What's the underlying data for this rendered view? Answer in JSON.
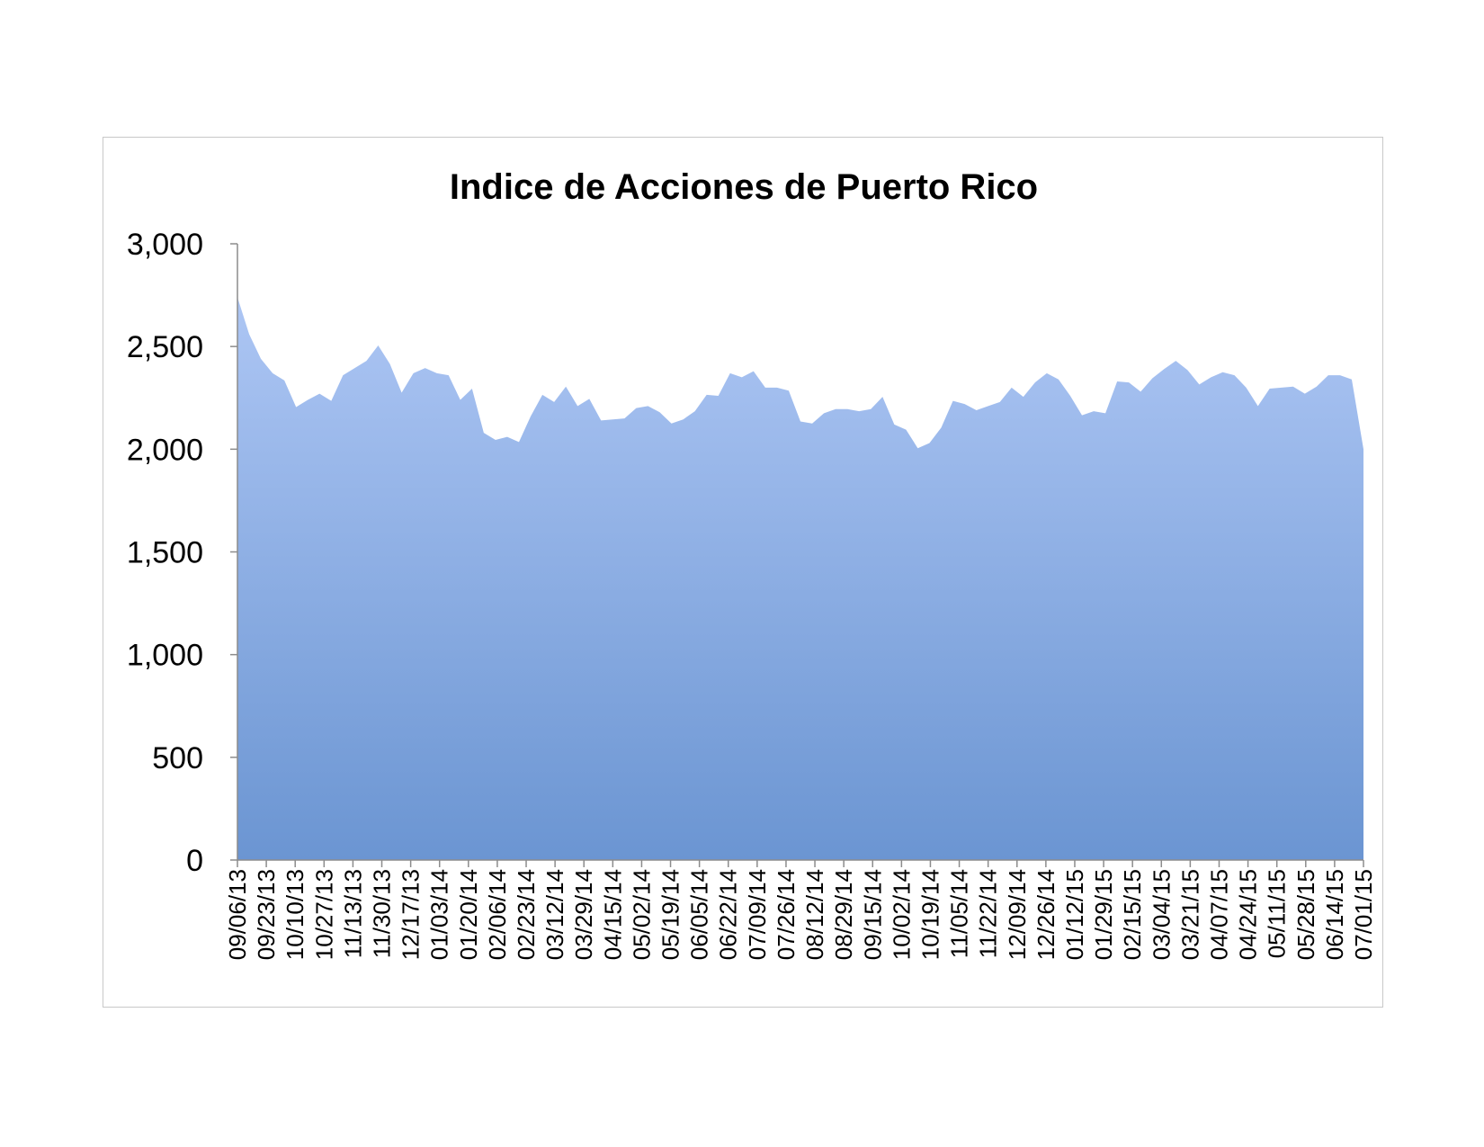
{
  "chart_data": {
    "type": "area",
    "title": "Indice de Acciones de Puerto Rico",
    "xlabel": "",
    "ylabel": "",
    "ylim": [
      0,
      3000
    ],
    "yticks": [
      "0",
      "500",
      "1,000",
      "1,500",
      "2,000",
      "2,500",
      "3,000"
    ],
    "grid": false,
    "legend": "none",
    "colors": {
      "fill_top": "#adc6f4",
      "fill_bottom": "#6b95d2",
      "axis": "#8c8c8c"
    },
    "x_tick_labels": [
      "09/06/13",
      "09/23/13",
      "10/10/13",
      "10/27/13",
      "11/13/13",
      "11/30/13",
      "12/17/13",
      "01/03/14",
      "01/20/14",
      "02/06/14",
      "02/23/14",
      "03/12/14",
      "03/29/14",
      "04/15/14",
      "05/02/14",
      "05/19/14",
      "06/05/14",
      "06/22/14",
      "07/09/14",
      "07/26/14",
      "08/12/14",
      "08/29/14",
      "09/15/14",
      "10/02/14",
      "10/19/14",
      "11/05/14",
      "11/22/14",
      "12/09/14",
      "12/26/14",
      "01/12/15",
      "01/29/15",
      "02/15/15",
      "03/04/15",
      "03/21/15",
      "04/07/15",
      "04/24/15",
      "05/11/15",
      "05/28/15",
      "06/14/15",
      "07/01/15"
    ],
    "series": [
      {
        "values": [
          2740,
          2560,
          2440,
          2370,
          2335,
          2205,
          2240,
          2270,
          2235,
          2360,
          2395,
          2430,
          2505,
          2415,
          2275,
          2370,
          2395,
          2370,
          2360,
          2240,
          2295,
          2080,
          2045,
          2060,
          2035,
          2160,
          2265,
          2230,
          2305,
          2210,
          2245,
          2140,
          2145,
          2150,
          2200,
          2210,
          2180,
          2125,
          2145,
          2185,
          2265,
          2260,
          2370,
          2350,
          2380,
          2300,
          2300,
          2285,
          2135,
          2125,
          2175,
          2195,
          2195,
          2185,
          2195,
          2255,
          2120,
          2095,
          2005,
          2030,
          2105,
          2235,
          2220,
          2190,
          2210,
          2230,
          2300,
          2255,
          2325,
          2370,
          2340,
          2260,
          2165,
          2185,
          2175,
          2330,
          2325,
          2280,
          2345,
          2390,
          2430,
          2385,
          2315,
          2350,
          2375,
          2360,
          2300,
          2210,
          2295,
          2300,
          2305,
          2270,
          2305,
          2360,
          2360,
          2340,
          2000
        ]
      }
    ]
  }
}
